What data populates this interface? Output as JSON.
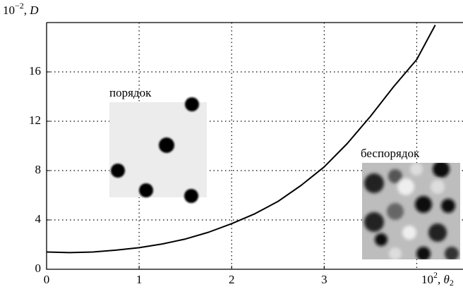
{
  "chart_data": {
    "type": "line",
    "x_label": {
      "base": "10",
      "exp": "2",
      "sep": ", ",
      "var": "θ",
      "sub": "2"
    },
    "y_label": {
      "base": "10",
      "exp": "−2",
      "sep": ", ",
      "var": "D"
    },
    "annotations": [
      "порядок",
      "беспорядок"
    ],
    "xlim": [
      0,
      4.5
    ],
    "ylim": [
      0,
      20
    ],
    "xticks": [
      0,
      1,
      2,
      3
    ],
    "yticks": [
      0,
      4,
      8,
      12,
      16
    ],
    "xgrid": [
      1,
      2,
      3,
      4
    ],
    "grid": true,
    "series": [
      {
        "color": "#000000",
        "x": [
          0,
          0.25,
          0.5,
          0.75,
          1,
          1.25,
          1.5,
          1.75,
          2,
          2.25,
          2.5,
          2.75,
          3,
          3.25,
          3.5,
          3.75,
          4,
          4.2
        ],
        "values": [
          1.4,
          1.35,
          1.4,
          1.55,
          1.75,
          2.05,
          2.45,
          3.0,
          3.7,
          4.5,
          5.5,
          6.8,
          8.3,
          10.2,
          12.4,
          14.8,
          17.0,
          19.8
        ]
      }
    ]
  }
}
